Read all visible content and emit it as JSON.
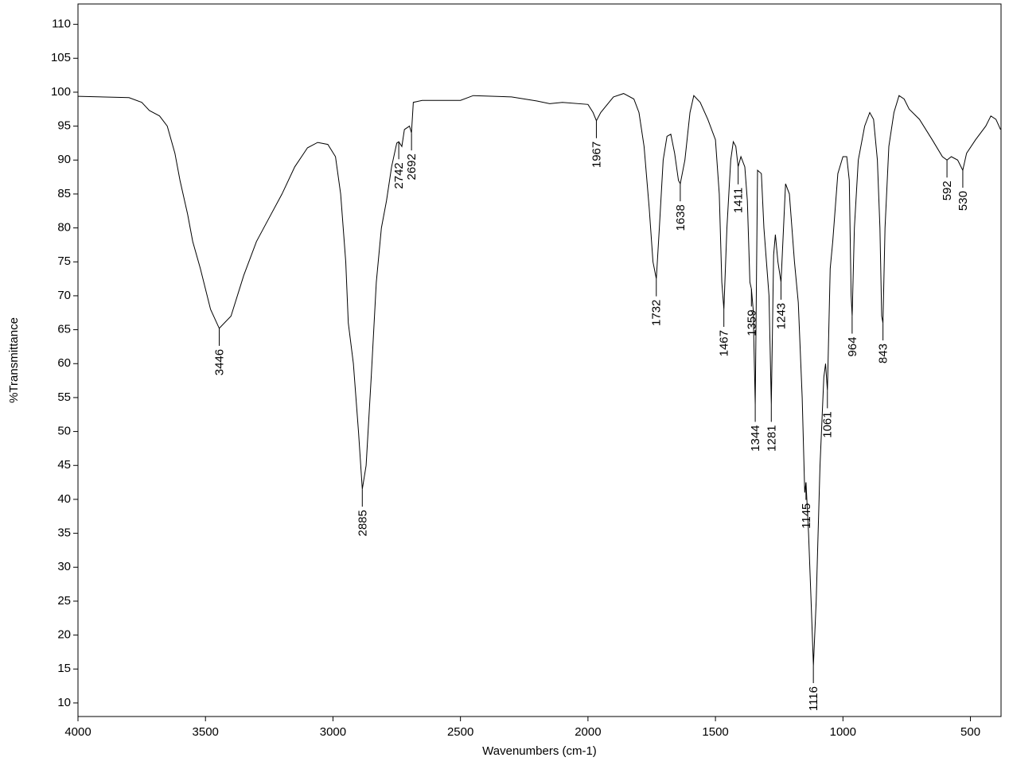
{
  "chart_data": {
    "type": "line",
    "x_label": "Wavenumbers (cm-1)",
    "y_label": "%Transmittance",
    "xlim": [
      4000,
      380
    ],
    "ylim": [
      8,
      113
    ],
    "xticks": [
      4000,
      3500,
      3000,
      2500,
      2000,
      1500,
      1000,
      500
    ],
    "yticks": [
      10,
      15,
      20,
      25,
      30,
      35,
      40,
      45,
      50,
      55,
      60,
      65,
      70,
      75,
      80,
      85,
      90,
      95,
      100,
      105,
      110
    ],
    "color": "#000000",
    "x": [
      4000,
      3800,
      3750,
      3720,
      3680,
      3650,
      3620,
      3600,
      3570,
      3550,
      3520,
      3500,
      3480,
      3446,
      3400,
      3350,
      3300,
      3250,
      3200,
      3150,
      3100,
      3060,
      3020,
      2990,
      2970,
      2950,
      2940,
      2920,
      2900,
      2885,
      2870,
      2850,
      2830,
      2810,
      2790,
      2770,
      2750,
      2742,
      2730,
      2720,
      2700,
      2692,
      2685,
      2650,
      2500,
      2450,
      2300,
      2200,
      2150,
      2100,
      2000,
      1980,
      1967,
      1950,
      1900,
      1860,
      1820,
      1800,
      1780,
      1760,
      1745,
      1732,
      1720,
      1705,
      1690,
      1675,
      1660,
      1645,
      1638,
      1620,
      1600,
      1585,
      1560,
      1530,
      1500,
      1485,
      1475,
      1467,
      1455,
      1440,
      1430,
      1420,
      1411,
      1400,
      1385,
      1375,
      1365,
      1359,
      1352,
      1344,
      1335,
      1320,
      1310,
      1300,
      1290,
      1281,
      1272,
      1265,
      1255,
      1243,
      1225,
      1210,
      1200,
      1190,
      1175,
      1160,
      1150,
      1145,
      1135,
      1125,
      1116,
      1105,
      1090,
      1075,
      1068,
      1061,
      1050,
      1040,
      1020,
      1000,
      985,
      975,
      968,
      964,
      955,
      940,
      915,
      895,
      880,
      865,
      855,
      848,
      843,
      835,
      820,
      800,
      780,
      760,
      740,
      700,
      650,
      610,
      592,
      575,
      550,
      530,
      515,
      480,
      440,
      420,
      400,
      382
    ],
    "values": [
      99.4,
      99.2,
      98.5,
      97.3,
      96.5,
      95,
      91,
      87,
      82,
      78,
      74,
      71,
      68,
      65.2,
      67,
      73,
      78,
      81.5,
      85,
      89,
      91.8,
      92.6,
      92.3,
      90.5,
      85,
      75,
      66,
      60,
      50,
      41.5,
      45,
      58,
      72,
      80,
      84,
      89,
      92.5,
      92.7,
      92,
      94.5,
      95,
      94,
      98.5,
      98.8,
      98.8,
      99.5,
      99.3,
      98.7,
      98.3,
      98.5,
      98.2,
      97,
      95.8,
      97,
      99.3,
      99.8,
      99,
      97,
      92,
      83,
      75,
      72.5,
      80,
      90,
      93.5,
      93.8,
      91,
      87,
      86.5,
      90,
      97,
      99.5,
      98.5,
      96,
      93,
      85,
      72,
      68,
      80,
      90,
      92.7,
      92,
      89,
      90.5,
      89,
      84,
      72,
      71,
      68,
      54,
      88.5,
      88,
      80,
      75,
      70,
      54,
      76,
      79,
      75,
      72,
      86.5,
      85,
      80,
      75,
      69,
      55,
      41,
      42.5,
      35,
      25,
      15.5,
      25,
      45,
      58,
      60,
      56,
      74,
      78,
      88,
      90.5,
      90.5,
      87,
      70,
      67,
      80,
      90,
      95,
      97,
      96,
      90,
      80,
      67,
      66,
      80,
      92,
      97,
      99.5,
      99,
      97.5,
      96,
      93,
      90.5,
      90,
      90.5,
      90,
      88.5,
      91,
      93,
      95,
      96.5,
      96,
      94.5
    ],
    "peaks": [
      {
        "x": 3446,
        "y": 65.2
      },
      {
        "x": 2885,
        "y": 41.5
      },
      {
        "x": 2742,
        "y": 92.7
      },
      {
        "x": 2692,
        "y": 94
      },
      {
        "x": 1967,
        "y": 95.8
      },
      {
        "x": 1732,
        "y": 72.5
      },
      {
        "x": 1638,
        "y": 86.5
      },
      {
        "x": 1467,
        "y": 68
      },
      {
        "x": 1411,
        "y": 89
      },
      {
        "x": 1359,
        "y": 71
      },
      {
        "x": 1344,
        "y": 54
      },
      {
        "x": 1281,
        "y": 54
      },
      {
        "x": 1243,
        "y": 72
      },
      {
        "x": 1145,
        "y": 42.5
      },
      {
        "x": 1116,
        "y": 15.5
      },
      {
        "x": 1061,
        "y": 56
      },
      {
        "x": 964,
        "y": 67
      },
      {
        "x": 843,
        "y": 66
      },
      {
        "x": 592,
        "y": 90
      },
      {
        "x": 530,
        "y": 88.5
      }
    ]
  }
}
